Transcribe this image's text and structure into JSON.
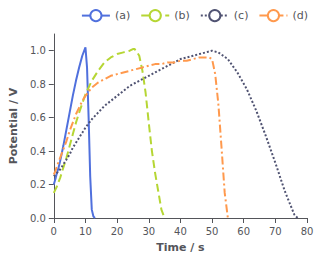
{
  "chart_data": {
    "type": "line",
    "xlabel": "Time / s",
    "ylabel": "Potential / V",
    "xlim": [
      0,
      80
    ],
    "ylim": [
      0.0,
      1.1
    ],
    "xticks": [
      0,
      10,
      20,
      30,
      40,
      50,
      60,
      70,
      80
    ],
    "yticks": [
      {
        "value": 0,
        "label": "0.0"
      },
      0.2,
      0.4,
      0.6,
      0.8,
      {
        "value": 1,
        "label": "1.0"
      }
    ],
    "grid": false,
    "legend": "upper right",
    "series": [
      {
        "name": "(a)",
        "line_style": "solid",
        "x": [
          0,
          0.3,
          0.6,
          1,
          1.5,
          2,
          3,
          4,
          5,
          6,
          7,
          8,
          9,
          10,
          10.5,
          11,
          11.5,
          12,
          12.5,
          13
        ],
        "values": [
          0.2,
          0.22,
          0.24,
          0.27,
          0.3,
          0.34,
          0.43,
          0.53,
          0.63,
          0.73,
          0.82,
          0.9,
          0.97,
          1.02,
          0.9,
          0.6,
          0.25,
          0.05,
          0.01,
          0.0
        ]
      },
      {
        "name": "(b)",
        "line_style": "dashed",
        "x": [
          0,
          0.5,
          1,
          2,
          3,
          4,
          5,
          6,
          7,
          8,
          10,
          12,
          14,
          16,
          18,
          20,
          22,
          24,
          25,
          25.5,
          26,
          27,
          28,
          29,
          30,
          31,
          32,
          33,
          34,
          35
        ],
        "values": [
          0.15,
          0.17,
          0.19,
          0.24,
          0.3,
          0.36,
          0.43,
          0.5,
          0.57,
          0.63,
          0.74,
          0.82,
          0.88,
          0.93,
          0.96,
          0.98,
          0.99,
          1.0,
          1.01,
          1.01,
          1.0,
          0.97,
          0.88,
          0.75,
          0.57,
          0.4,
          0.27,
          0.16,
          0.05,
          0.0
        ]
      },
      {
        "name": "(c)",
        "line_style": "dotted",
        "x": [
          0,
          1,
          2,
          3,
          4,
          5,
          6,
          7,
          8,
          9,
          10,
          12,
          14,
          16,
          18,
          20,
          22,
          24,
          26,
          28,
          30,
          32,
          34,
          36,
          38,
          40,
          42,
          44,
          46,
          48,
          50,
          52,
          55,
          58,
          61,
          64,
          67,
          70,
          73,
          76,
          77
        ],
        "values": [
          0.25,
          0.27,
          0.29,
          0.32,
          0.35,
          0.38,
          0.42,
          0.45,
          0.48,
          0.51,
          0.54,
          0.59,
          0.63,
          0.67,
          0.7,
          0.73,
          0.76,
          0.79,
          0.81,
          0.83,
          0.85,
          0.87,
          0.89,
          0.91,
          0.93,
          0.95,
          0.96,
          0.97,
          0.98,
          0.99,
          1.0,
          0.99,
          0.95,
          0.87,
          0.77,
          0.64,
          0.49,
          0.33,
          0.16,
          0.02,
          0.0
        ]
      },
      {
        "name": "(d)",
        "line_style": "dashdot",
        "x": [
          0,
          0.5,
          1,
          2,
          3,
          4,
          5,
          6,
          7,
          8,
          9,
          10,
          12,
          14,
          16,
          18,
          20,
          22,
          24,
          26,
          28,
          30,
          32,
          34,
          36,
          38,
          40,
          42,
          44,
          46,
          47,
          48,
          49,
          50,
          51,
          52,
          53,
          54,
          55
        ],
        "values": [
          0.26,
          0.28,
          0.31,
          0.36,
          0.41,
          0.46,
          0.52,
          0.57,
          0.62,
          0.66,
          0.7,
          0.73,
          0.78,
          0.81,
          0.83,
          0.85,
          0.86,
          0.87,
          0.88,
          0.89,
          0.9,
          0.91,
          0.92,
          0.92,
          0.93,
          0.93,
          0.94,
          0.94,
          0.95,
          0.96,
          0.96,
          0.96,
          0.96,
          0.95,
          0.86,
          0.68,
          0.42,
          0.15,
          0.0
        ]
      }
    ]
  }
}
